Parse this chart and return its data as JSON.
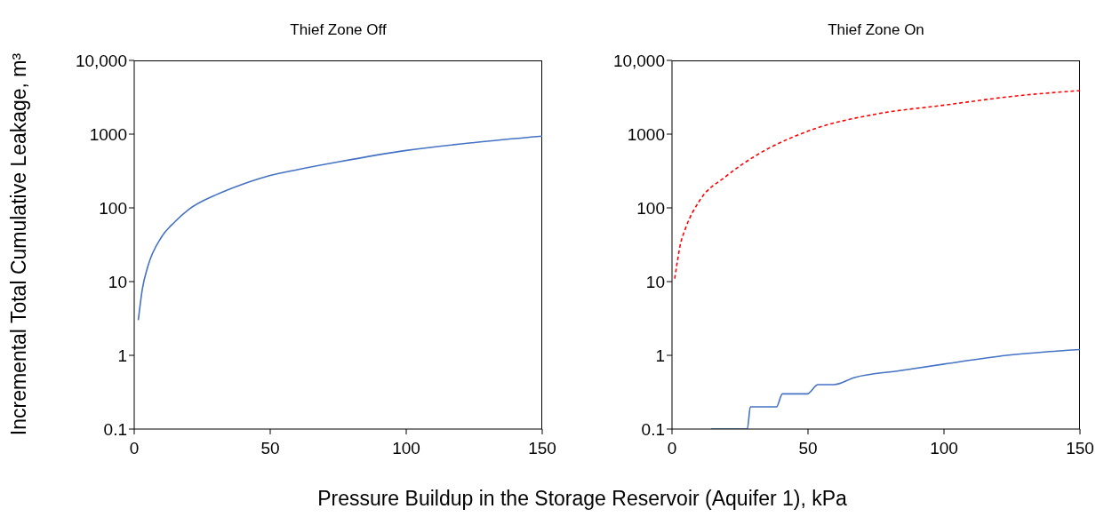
{
  "chart_data": [
    {
      "type": "line",
      "title": "Thief Zone Off",
      "ylabel": "Incremental Total Cumulative Leakage, m³",
      "xlabel": "Pressure Buildup in the Storage Reservoir (Aquifer 1), kPa",
      "log": "y",
      "marker": "none",
      "xlim": [
        0,
        150
      ],
      "xticks": [
        0,
        50,
        100,
        150
      ],
      "ylim": [
        0.1,
        10000
      ],
      "yticks": [
        0.1,
        1,
        10,
        100,
        1000,
        {
          "value": 10000,
          "label": "10,000"
        }
      ],
      "series": [
        {
          "color": "#4472c4",
          "line_style": "solid",
          "x": [
            1.5,
            3,
            5,
            10,
            15,
            20,
            30,
            40,
            50,
            60,
            75,
            100,
            125,
            150
          ],
          "values": [
            3,
            8,
            16,
            40,
            65,
            95,
            150,
            210,
            275,
            330,
            420,
            600,
            770,
            940
          ]
        }
      ]
    },
    {
      "type": "line",
      "title": "Thief Zone On",
      "log": "y",
      "marker": "none",
      "xlim": [
        0,
        150
      ],
      "xticks": [
        0,
        50,
        100,
        150
      ],
      "ylim": [
        0.1,
        10000
      ],
      "yticks": [
        0.1,
        1,
        10,
        100,
        1000,
        {
          "value": 10000,
          "label": "10,000"
        }
      ],
      "series": [
        {
          "color": "#ff0000",
          "line_style": "dashed",
          "x": [
            1,
            2,
            3,
            5,
            10,
            20,
            30,
            50,
            75,
            100,
            125,
            150
          ],
          "values": [
            11,
            19,
            31,
            53,
            123,
            270,
            490,
            1100,
            1870,
            2470,
            3250,
            3900
          ]
        },
        {
          "color": "#4472c4",
          "line_style": "solid",
          "x": [
            14.4,
            27.7,
            28.8,
            38.4,
            40.6,
            49.7,
            53.7,
            59.5,
            67.1,
            83.8,
            100,
            123,
            150
          ],
          "values": [
            0.1,
            0.1,
            0.2,
            0.2,
            0.3,
            0.3,
            0.4,
            0.4,
            0.5,
            0.62,
            0.76,
            1,
            1.2
          ]
        }
      ]
    }
  ]
}
